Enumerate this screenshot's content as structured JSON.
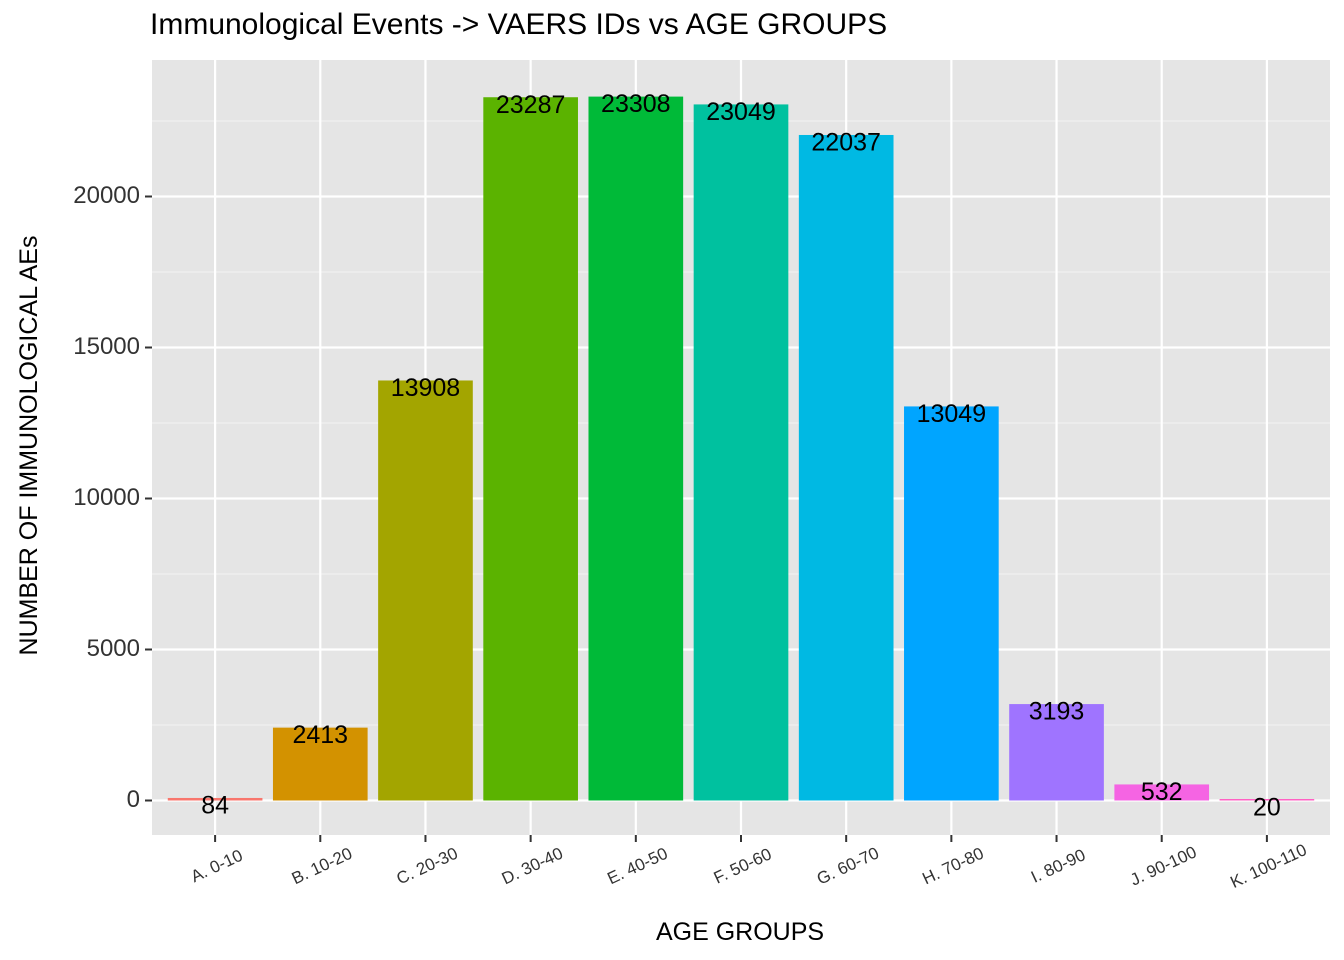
{
  "chart_data": {
    "type": "bar",
    "title": "Immunological Events -> VAERS IDs vs AGE GROUPS",
    "xlabel": "AGE GROUPS",
    "ylabel": "NUMBER OF IMMUNOLOGICAL AEs",
    "categories": [
      "A. 0-10",
      "B. 10-20",
      "C. 20-30",
      "D. 30-40",
      "E. 40-50",
      "F. 50-60",
      "G. 60-70",
      "H. 70-80",
      "I. 80-90",
      "J. 90-100",
      "K. 100-110"
    ],
    "values": [
      84,
      2413,
      13908,
      23287,
      23308,
      23049,
      22037,
      13049,
      3193,
      532,
      20
    ],
    "colors": [
      "#F8766D",
      "#D39200",
      "#A3A500",
      "#5BB300",
      "#00BA38",
      "#00C19F",
      "#00B9E3",
      "#00A5FF",
      "#9F74FF",
      "#F564E3",
      "#FF61C3"
    ],
    "y_ticks": [
      0,
      5000,
      10000,
      15000,
      20000
    ],
    "ylim": [
      0,
      24000
    ],
    "grid": true,
    "legend": "none",
    "panel_background": "#E5E5E5"
  }
}
